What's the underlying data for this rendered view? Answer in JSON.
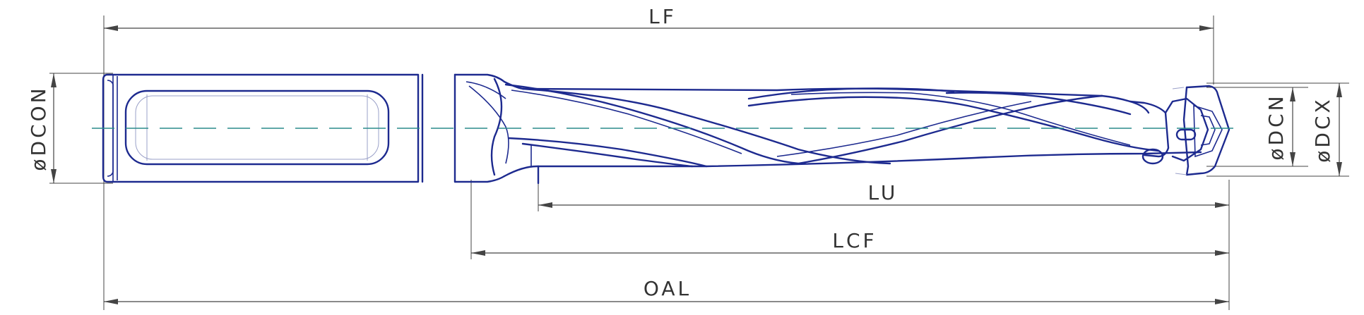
{
  "dimensions": {
    "lf": "LF",
    "lu": "LU",
    "lcf": "LCF",
    "oal": "OAL",
    "dcon": "øDCON",
    "dcn": "øDCN",
    "dcx": "øDCX"
  },
  "colors": {
    "tool_outline": "#1d2a8f",
    "centerline": "#2a8c8c",
    "dimension": "#444444"
  }
}
